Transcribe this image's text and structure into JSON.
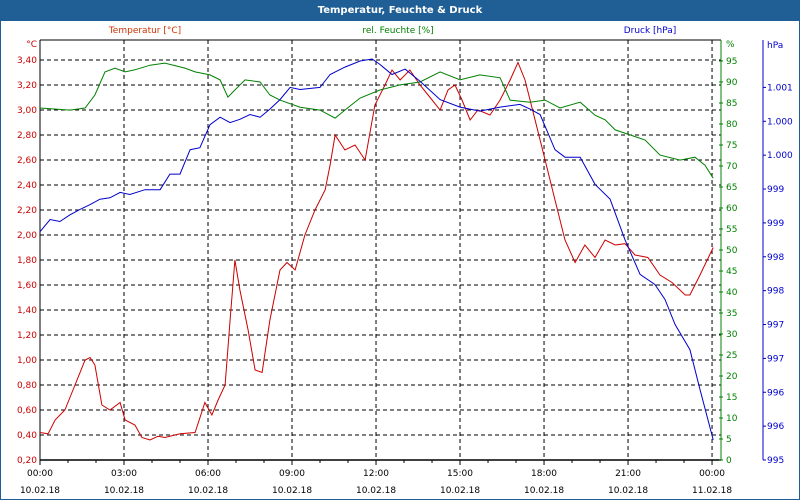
{
  "window": {
    "title": "Temperatur, Feuchte & Druck"
  },
  "colors": {
    "temperature": "#cc0000",
    "humidity": "#008000",
    "pressure": "#0000cc",
    "titlebar": "#1f5f96"
  },
  "chart_data": {
    "type": "line",
    "title": "Temperatur, Feuchte & Druck",
    "grid": true,
    "x": {
      "unit": "hours since 10.02.18 00:00",
      "range": [
        0,
        24.32
      ],
      "ticks": [
        {
          "value": 0,
          "time": "00:00",
          "date": "10.02.18"
        },
        {
          "value": 3,
          "time": "03:00",
          "date": "10.02.18"
        },
        {
          "value": 6,
          "time": "06:00",
          "date": "10.02.18"
        },
        {
          "value": 9,
          "time": "09:00",
          "date": "10.02.18"
        },
        {
          "value": 12,
          "time": "12:00",
          "date": "10.02.18"
        },
        {
          "value": 15,
          "time": "15:00",
          "date": "10.02.18"
        },
        {
          "value": 18,
          "time": "18:00",
          "date": "10.02.18"
        },
        {
          "value": 21,
          "time": "21:00",
          "date": "10.02.18"
        },
        {
          "value": 24,
          "time": "00:00",
          "date": "11.02.18"
        }
      ]
    },
    "axes": {
      "temperature": {
        "label": "Temperatur [°C]",
        "unit": "°C",
        "ylim": [
          0.2,
          3.56
        ],
        "ticks": [
          0.2,
          0.4,
          0.6,
          0.8,
          1.0,
          1.2,
          1.4,
          1.6,
          1.8,
          2.0,
          2.2,
          2.4,
          2.6,
          2.8,
          3.0,
          3.2,
          3.4
        ],
        "tick_labels": [
          "0,20",
          "0,40",
          "0,60",
          "0,80",
          "1,00",
          "1,20",
          "1,40",
          "1,60",
          "1,80",
          "2,00",
          "2,20",
          "2,40",
          "2,60",
          "2,80",
          "3,00",
          "3,20",
          "3,40"
        ]
      },
      "humidity": {
        "label": "rel. Feuchte [%]",
        "unit": "%",
        "ylim": [
          0,
          100
        ],
        "ticks": [
          0,
          5,
          10,
          15,
          20,
          25,
          30,
          35,
          40,
          45,
          50,
          55,
          60,
          65,
          70,
          75,
          80,
          85,
          90,
          95
        ],
        "tick_labels": [
          "0",
          "5",
          "10",
          "15",
          "20",
          "25",
          "30",
          "35",
          "40",
          "45",
          "50",
          "55",
          "60",
          "65",
          "70",
          "75",
          "80",
          "85",
          "90",
          "95"
        ]
      },
      "pressure": {
        "label": "Druck [hPa]",
        "unit": "hPa",
        "ylim": [
          995,
          1001.2
        ],
        "ticks": [
          995,
          995.5,
          996,
          996.5,
          997,
          997.5,
          998,
          998.5,
          999,
          999.5,
          1000,
          1000.5
        ],
        "tick_labels": [
          "995",
          "996",
          "996",
          "997",
          "997",
          "998",
          "998",
          "999",
          "999",
          "1.000",
          "1.000",
          "1.001"
        ]
      }
    },
    "series": [
      {
        "name": "Temperatur [°C]",
        "axis": "temperature",
        "points": [
          [
            0,
            0.42
          ],
          [
            0.29,
            0.41
          ],
          [
            0.54,
            0.52
          ],
          [
            0.89,
            0.6
          ],
          [
            1.25,
            0.8
          ],
          [
            1.61,
            1.0
          ],
          [
            1.79,
            1.02
          ],
          [
            1.96,
            0.96
          ],
          [
            2.21,
            0.64
          ],
          [
            2.5,
            0.6
          ],
          [
            2.86,
            0.66
          ],
          [
            3.04,
            0.52
          ],
          [
            3.39,
            0.48
          ],
          [
            3.64,
            0.38
          ],
          [
            3.93,
            0.36
          ],
          [
            4.21,
            0.39
          ],
          [
            4.46,
            0.38
          ],
          [
            5.0,
            0.41
          ],
          [
            5.54,
            0.42
          ],
          [
            5.89,
            0.66
          ],
          [
            6.14,
            0.56
          ],
          [
            6.36,
            0.68
          ],
          [
            6.61,
            0.8
          ],
          [
            6.79,
            1.32
          ],
          [
            6.96,
            1.8
          ],
          [
            7.14,
            1.56
          ],
          [
            7.43,
            1.24
          ],
          [
            7.68,
            0.92
          ],
          [
            7.93,
            0.9
          ],
          [
            8.21,
            1.32
          ],
          [
            8.57,
            1.72
          ],
          [
            8.82,
            1.78
          ],
          [
            9.11,
            1.72
          ],
          [
            9.46,
            2.0
          ],
          [
            9.82,
            2.2
          ],
          [
            10.18,
            2.36
          ],
          [
            10.36,
            2.56
          ],
          [
            10.54,
            2.8
          ],
          [
            10.89,
            2.68
          ],
          [
            11.25,
            2.72
          ],
          [
            11.61,
            2.6
          ],
          [
            11.96,
            3.04
          ],
          [
            12.32,
            3.2
          ],
          [
            12.57,
            3.32
          ],
          [
            12.86,
            3.24
          ],
          [
            13.21,
            3.32
          ],
          [
            13.57,
            3.2
          ],
          [
            13.93,
            3.1
          ],
          [
            14.29,
            3.0
          ],
          [
            14.57,
            3.16
          ],
          [
            14.82,
            3.2
          ],
          [
            15.07,
            3.08
          ],
          [
            15.36,
            2.92
          ],
          [
            15.64,
            3.0
          ],
          [
            16.07,
            2.96
          ],
          [
            16.43,
            3.08
          ],
          [
            16.79,
            3.24
          ],
          [
            17.07,
            3.38
          ],
          [
            17.32,
            3.24
          ],
          [
            17.68,
            2.92
          ],
          [
            18.04,
            2.6
          ],
          [
            18.39,
            2.28
          ],
          [
            18.75,
            1.96
          ],
          [
            19.11,
            1.78
          ],
          [
            19.46,
            1.92
          ],
          [
            19.82,
            1.82
          ],
          [
            20.18,
            1.96
          ],
          [
            20.54,
            1.92
          ],
          [
            20.89,
            1.93
          ],
          [
            21.25,
            1.84
          ],
          [
            21.71,
            1.82
          ],
          [
            22.14,
            1.68
          ],
          [
            22.57,
            1.62
          ],
          [
            23.04,
            1.52
          ],
          [
            23.21,
            1.52
          ],
          [
            23.57,
            1.68
          ],
          [
            24.04,
            1.9
          ]
        ]
      },
      {
        "name": "rel. Feuchte [%]",
        "axis": "humidity",
        "points": [
          [
            0,
            83.8
          ],
          [
            1.07,
            83.3
          ],
          [
            1.61,
            83.8
          ],
          [
            1.96,
            86.9
          ],
          [
            2.32,
            92.4
          ],
          [
            2.68,
            93.3
          ],
          [
            3.04,
            92.4
          ],
          [
            3.39,
            92.9
          ],
          [
            3.93,
            94.0
          ],
          [
            4.46,
            94.5
          ],
          [
            5.18,
            93.3
          ],
          [
            5.54,
            92.4
          ],
          [
            6.07,
            91.7
          ],
          [
            6.43,
            90.5
          ],
          [
            6.71,
            86.4
          ],
          [
            6.96,
            88.1
          ],
          [
            7.32,
            90.5
          ],
          [
            7.86,
            90.0
          ],
          [
            8.21,
            86.9
          ],
          [
            8.57,
            85.7
          ],
          [
            9.29,
            84.0
          ],
          [
            10.0,
            83.3
          ],
          [
            10.54,
            81.4
          ],
          [
            10.89,
            83.3
          ],
          [
            11.43,
            86.2
          ],
          [
            12.14,
            88.1
          ],
          [
            12.86,
            89.3
          ],
          [
            13.57,
            90.0
          ],
          [
            14.29,
            92.4
          ],
          [
            15.0,
            90.5
          ],
          [
            15.71,
            91.7
          ],
          [
            16.43,
            91.0
          ],
          [
            16.79,
            85.7
          ],
          [
            17.5,
            85.2
          ],
          [
            18.04,
            85.7
          ],
          [
            18.57,
            83.8
          ],
          [
            19.29,
            85.2
          ],
          [
            19.82,
            82.1
          ],
          [
            20.18,
            81.0
          ],
          [
            20.54,
            78.6
          ],
          [
            21.07,
            77.4
          ],
          [
            21.61,
            76.2
          ],
          [
            22.14,
            72.6
          ],
          [
            22.86,
            71.4
          ],
          [
            23.39,
            72.1
          ],
          [
            23.75,
            70.2
          ],
          [
            24.04,
            67.1
          ]
        ]
      },
      {
        "name": "Druck [hPa]",
        "axis": "pressure",
        "points": [
          [
            0,
            998.37
          ],
          [
            0.36,
            998.55
          ],
          [
            0.71,
            998.52
          ],
          [
            1.07,
            998.62
          ],
          [
            1.43,
            998.7
          ],
          [
            1.79,
            998.77
          ],
          [
            2.14,
            998.85
          ],
          [
            2.5,
            998.87
          ],
          [
            2.86,
            998.95
          ],
          [
            3.21,
            998.92
          ],
          [
            3.75,
            998.99
          ],
          [
            4.29,
            998.99
          ],
          [
            4.64,
            999.22
          ],
          [
            5.0,
            999.22
          ],
          [
            5.36,
            999.58
          ],
          [
            5.71,
            999.61
          ],
          [
            6.07,
            999.95
          ],
          [
            6.43,
            1000.06
          ],
          [
            6.79,
            999.98
          ],
          [
            7.14,
            1000.03
          ],
          [
            7.5,
            1000.1
          ],
          [
            7.86,
            1000.06
          ],
          [
            8.21,
            1000.18
          ],
          [
            8.57,
            1000.32
          ],
          [
            8.93,
            1000.5
          ],
          [
            9.29,
            1000.47
          ],
          [
            10.0,
            1000.5
          ],
          [
            10.36,
            1000.69
          ],
          [
            10.89,
            1000.8
          ],
          [
            11.43,
            1000.89
          ],
          [
            11.86,
            1000.92
          ],
          [
            12.14,
            1000.84
          ],
          [
            12.57,
            1000.69
          ],
          [
            13.04,
            1000.77
          ],
          [
            13.57,
            1000.59
          ],
          [
            14.29,
            1000.32
          ],
          [
            15.0,
            1000.21
          ],
          [
            15.71,
            1000.15
          ],
          [
            16.43,
            1000.21
          ],
          [
            17.14,
            1000.25
          ],
          [
            17.5,
            1000.18
          ],
          [
            17.86,
            1000.1
          ],
          [
            18.39,
            999.58
          ],
          [
            18.75,
            999.47
          ],
          [
            19.29,
            999.47
          ],
          [
            19.82,
            999.07
          ],
          [
            20.36,
            998.85
          ],
          [
            20.89,
            998.25
          ],
          [
            21.43,
            997.74
          ],
          [
            21.96,
            997.59
          ],
          [
            22.32,
            997.37
          ],
          [
            22.68,
            997.0
          ],
          [
            23.21,
            996.63
          ],
          [
            23.57,
            996.04
          ],
          [
            24.04,
            995.3
          ]
        ]
      }
    ]
  }
}
